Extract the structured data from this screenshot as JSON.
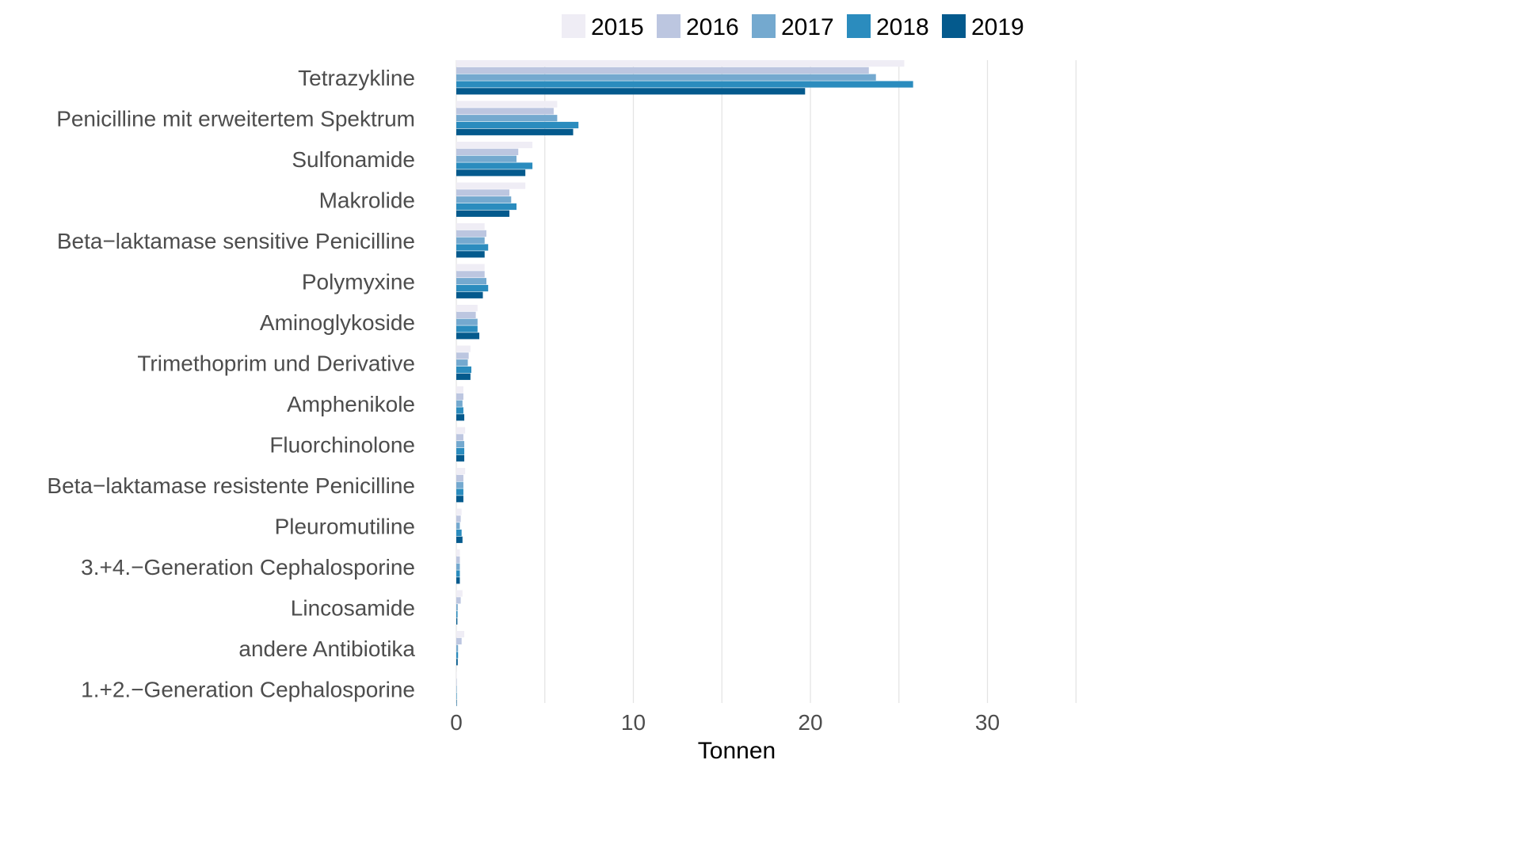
{
  "chart_data": {
    "type": "bar",
    "orientation": "horizontal",
    "categories": [
      "Tetrazykline",
      "Penicilline mit erweitertem Spektrum",
      "Sulfonamide",
      "Makrolide",
      "Beta−laktamase sensitive Penicilline",
      "Polymyxine",
      "Aminoglykoside",
      "Trimethoprim und Derivative",
      "Amphenikole",
      "Fluorchinolone",
      "Beta−laktamase resistente Penicilline",
      "Pleuromutiline",
      "3.+4.−Generation Cephalosporine",
      "Lincosamide",
      "andere Antibiotika",
      "1.+2.−Generation Cephalosporine"
    ],
    "series": [
      {
        "name": "2015",
        "color": "#efedf5",
        "values": [
          25.3,
          5.7,
          4.3,
          3.9,
          1.6,
          1.6,
          1.2,
          0.8,
          0.4,
          0.5,
          0.5,
          0.3,
          0.2,
          0.35,
          0.45,
          0.02
        ]
      },
      {
        "name": "2016",
        "color": "#bcc6e0",
        "values": [
          23.3,
          5.5,
          3.5,
          3.0,
          1.7,
          1.6,
          1.1,
          0.7,
          0.4,
          0.4,
          0.4,
          0.25,
          0.2,
          0.25,
          0.3,
          0.02
        ]
      },
      {
        "name": "2017",
        "color": "#74a9cf",
        "values": [
          23.7,
          5.7,
          3.4,
          3.1,
          1.6,
          1.7,
          1.2,
          0.65,
          0.35,
          0.45,
          0.4,
          0.2,
          0.2,
          0.08,
          0.1,
          0.02
        ]
      },
      {
        "name": "2018",
        "color": "#2b8cbe",
        "values": [
          25.8,
          6.9,
          4.3,
          3.4,
          1.8,
          1.8,
          1.2,
          0.85,
          0.4,
          0.45,
          0.4,
          0.3,
          0.2,
          0.07,
          0.1,
          0.02
        ]
      },
      {
        "name": "2019",
        "color": "#045a8d",
        "values": [
          19.7,
          6.6,
          3.9,
          3.0,
          1.6,
          1.5,
          1.3,
          0.8,
          0.45,
          0.45,
          0.4,
          0.35,
          0.2,
          0.06,
          0.08,
          0.02
        ]
      }
    ],
    "xlabel": "Tonnen",
    "xlim": [
      0,
      35
    ],
    "xticks": [
      0,
      10,
      20,
      30
    ],
    "grid": true,
    "legend_position": "top"
  }
}
